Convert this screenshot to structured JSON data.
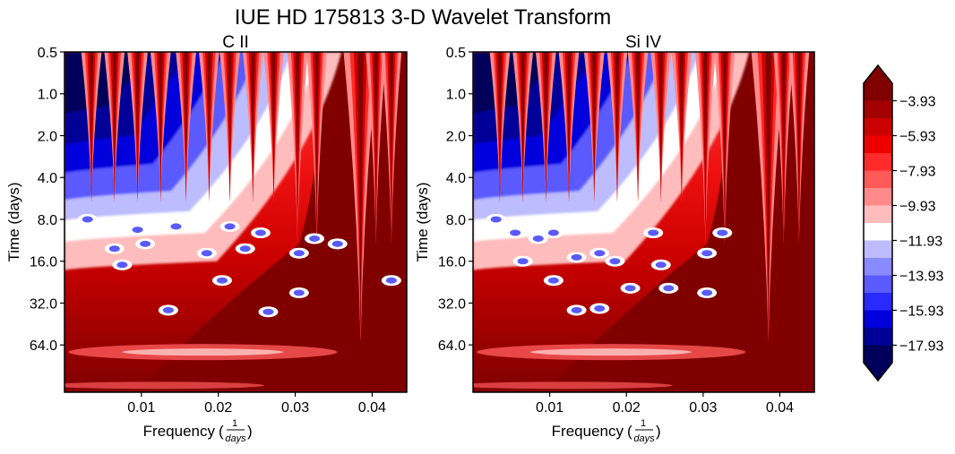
{
  "title": "IUE HD 175813 3-D Wavelet Transform",
  "colors": {
    "cmap": [
      "#00005a",
      "#000099",
      "#0000dd",
      "#2a2aff",
      "#5a5aff",
      "#8a8aff",
      "#bcbcff",
      "#ffffff",
      "#ffbcbc",
      "#ff8a8a",
      "#ff5a5a",
      "#ff2a2a",
      "#ee0000",
      "#cc0000",
      "#a30000",
      "#800000"
    ],
    "axis": "#000000"
  },
  "chart_data": {
    "type": "heatmap",
    "panels": [
      {
        "title": "C II",
        "xlabel": "Frequency",
        "ylabel": "Time (days)",
        "xticks": [
          0.01,
          0.02,
          0.03,
          0.04
        ],
        "xlim": [
          0.0,
          0.0445
        ],
        "yticks": [
          "0.5",
          "1.0",
          "2.0",
          "4.0",
          "8.0",
          "16.0",
          "32.0",
          "64.0"
        ],
        "ylim_days": [
          0.5,
          140
        ],
        "yscale": "log2",
        "features": {
          "spikes": [
            0.0035,
            0.0065,
            0.0095,
            0.0125,
            0.0158,
            0.0188,
            0.0215,
            0.0245,
            0.0272,
            0.0303,
            0.0328,
            0.0385,
            0.0405,
            0.0425
          ],
          "spots": [
            {
              "f": 0.003,
              "t": 8.0
            },
            {
              "f": 0.0065,
              "t": 13
            },
            {
              "f": 0.0075,
              "t": 17
            },
            {
              "f": 0.0095,
              "t": 9.5
            },
            {
              "f": 0.0105,
              "t": 12
            },
            {
              "f": 0.0145,
              "t": 9
            },
            {
              "f": 0.0185,
              "t": 14
            },
            {
              "f": 0.0215,
              "t": 9
            },
            {
              "f": 0.0235,
              "t": 13
            },
            {
              "f": 0.0255,
              "t": 10
            },
            {
              "f": 0.0305,
              "t": 14
            },
            {
              "f": 0.0325,
              "t": 11
            },
            {
              "f": 0.0355,
              "t": 12
            },
            {
              "f": 0.0425,
              "t": 22
            },
            {
              "f": 0.0135,
              "t": 36
            },
            {
              "f": 0.0205,
              "t": 22
            },
            {
              "f": 0.0265,
              "t": 37
            },
            {
              "f": 0.0305,
              "t": 27
            }
          ]
        }
      },
      {
        "title": "Si IV",
        "xlabel": "Frequency",
        "ylabel": "Time (days)",
        "xticks": [
          0.01,
          0.02,
          0.03,
          0.04
        ],
        "xlim": [
          0.0,
          0.0445
        ],
        "yticks": [
          "0.5",
          "1.0",
          "2.0",
          "4.0",
          "8.0",
          "16.0",
          "32.0",
          "64.0"
        ],
        "ylim_days": [
          0.5,
          140
        ],
        "yscale": "log2",
        "features": {
          "spikes": [
            0.0035,
            0.0065,
            0.0095,
            0.0125,
            0.0158,
            0.0188,
            0.0215,
            0.0245,
            0.0272,
            0.0303,
            0.0328,
            0.0385,
            0.0405,
            0.0425
          ],
          "spots": [
            {
              "f": 0.003,
              "t": 8.0
            },
            {
              "f": 0.0055,
              "t": 10
            },
            {
              "f": 0.0085,
              "t": 11
            },
            {
              "f": 0.0105,
              "t": 10
            },
            {
              "f": 0.0065,
              "t": 16
            },
            {
              "f": 0.0135,
              "t": 15
            },
            {
              "f": 0.0165,
              "t": 14
            },
            {
              "f": 0.0185,
              "t": 16
            },
            {
              "f": 0.0235,
              "t": 10
            },
            {
              "f": 0.0245,
              "t": 17
            },
            {
              "f": 0.0305,
              "t": 14
            },
            {
              "f": 0.0325,
              "t": 10
            },
            {
              "f": 0.0105,
              "t": 22
            },
            {
              "f": 0.0135,
              "t": 36
            },
            {
              "f": 0.0165,
              "t": 35
            },
            {
              "f": 0.0205,
              "t": 25
            },
            {
              "f": 0.0255,
              "t": 25
            },
            {
              "f": 0.0305,
              "t": 27
            }
          ]
        }
      }
    ],
    "colorbar": {
      "ticks": [
        "-3.93",
        "-5.93",
        "-7.93",
        "-9.93",
        "-11.93",
        "-13.93",
        "-15.93",
        "-17.93"
      ],
      "range": [
        -18.93,
        -2.93
      ],
      "extend": "both"
    }
  }
}
